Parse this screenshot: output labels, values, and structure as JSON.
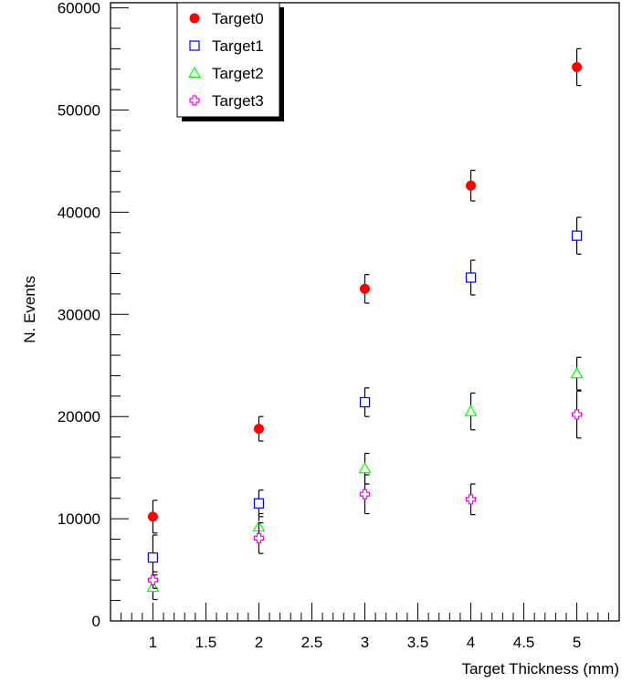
{
  "chart_data": {
    "type": "scatter",
    "xlabel": "Target Thickness (mm)",
    "ylabel": "N. Events",
    "xlim": [
      0.6,
      5.4
    ],
    "ylim": [
      0,
      60500
    ],
    "x_ticks": [
      1,
      1.5,
      2,
      2.5,
      3,
      3.5,
      4,
      4.5,
      5
    ],
    "x_tick_labels": [
      "1",
      "1.5",
      "2",
      "2.5",
      "3",
      "3.5",
      "4",
      "4.5",
      "5"
    ],
    "y_ticks": [
      0,
      10000,
      20000,
      30000,
      40000,
      50000,
      60000
    ],
    "y_tick_labels": [
      "0",
      "10000",
      "20000",
      "30000",
      "40000",
      "50000",
      "60000"
    ],
    "legend_position": "top-left",
    "series": [
      {
        "name": "Target0",
        "color": "#ff0000",
        "marker": "filled-circle",
        "x": [
          1,
          2,
          3,
          4,
          5
        ],
        "y": [
          10200,
          18800,
          32500,
          42600,
          54200
        ],
        "err": [
          1600,
          1200,
          1400,
          1500,
          1800
        ]
      },
      {
        "name": "Target1",
        "color": "#0000ff",
        "marker": "open-square",
        "x": [
          1,
          2,
          3,
          4,
          5
        ],
        "y": [
          6200,
          11500,
          21400,
          33600,
          37700
        ],
        "err": [
          2200,
          1300,
          1400,
          1700,
          1800
        ]
      },
      {
        "name": "Target2",
        "color": "#00ff00",
        "marker": "open-triangle",
        "x": [
          1,
          2,
          3,
          4,
          5
        ],
        "y": [
          3300,
          9200,
          14900,
          20500,
          24200
        ],
        "err": [
          1200,
          1300,
          1500,
          1800,
          1600
        ]
      },
      {
        "name": "Target3",
        "color": "#ff00ff",
        "marker": "open-cross",
        "x": [
          1,
          2,
          3,
          4,
          5
        ],
        "y": [
          4000,
          8100,
          12400,
          11900,
          20200
        ],
        "err": [
          800,
          1500,
          1900,
          1500,
          2300
        ]
      }
    ]
  }
}
